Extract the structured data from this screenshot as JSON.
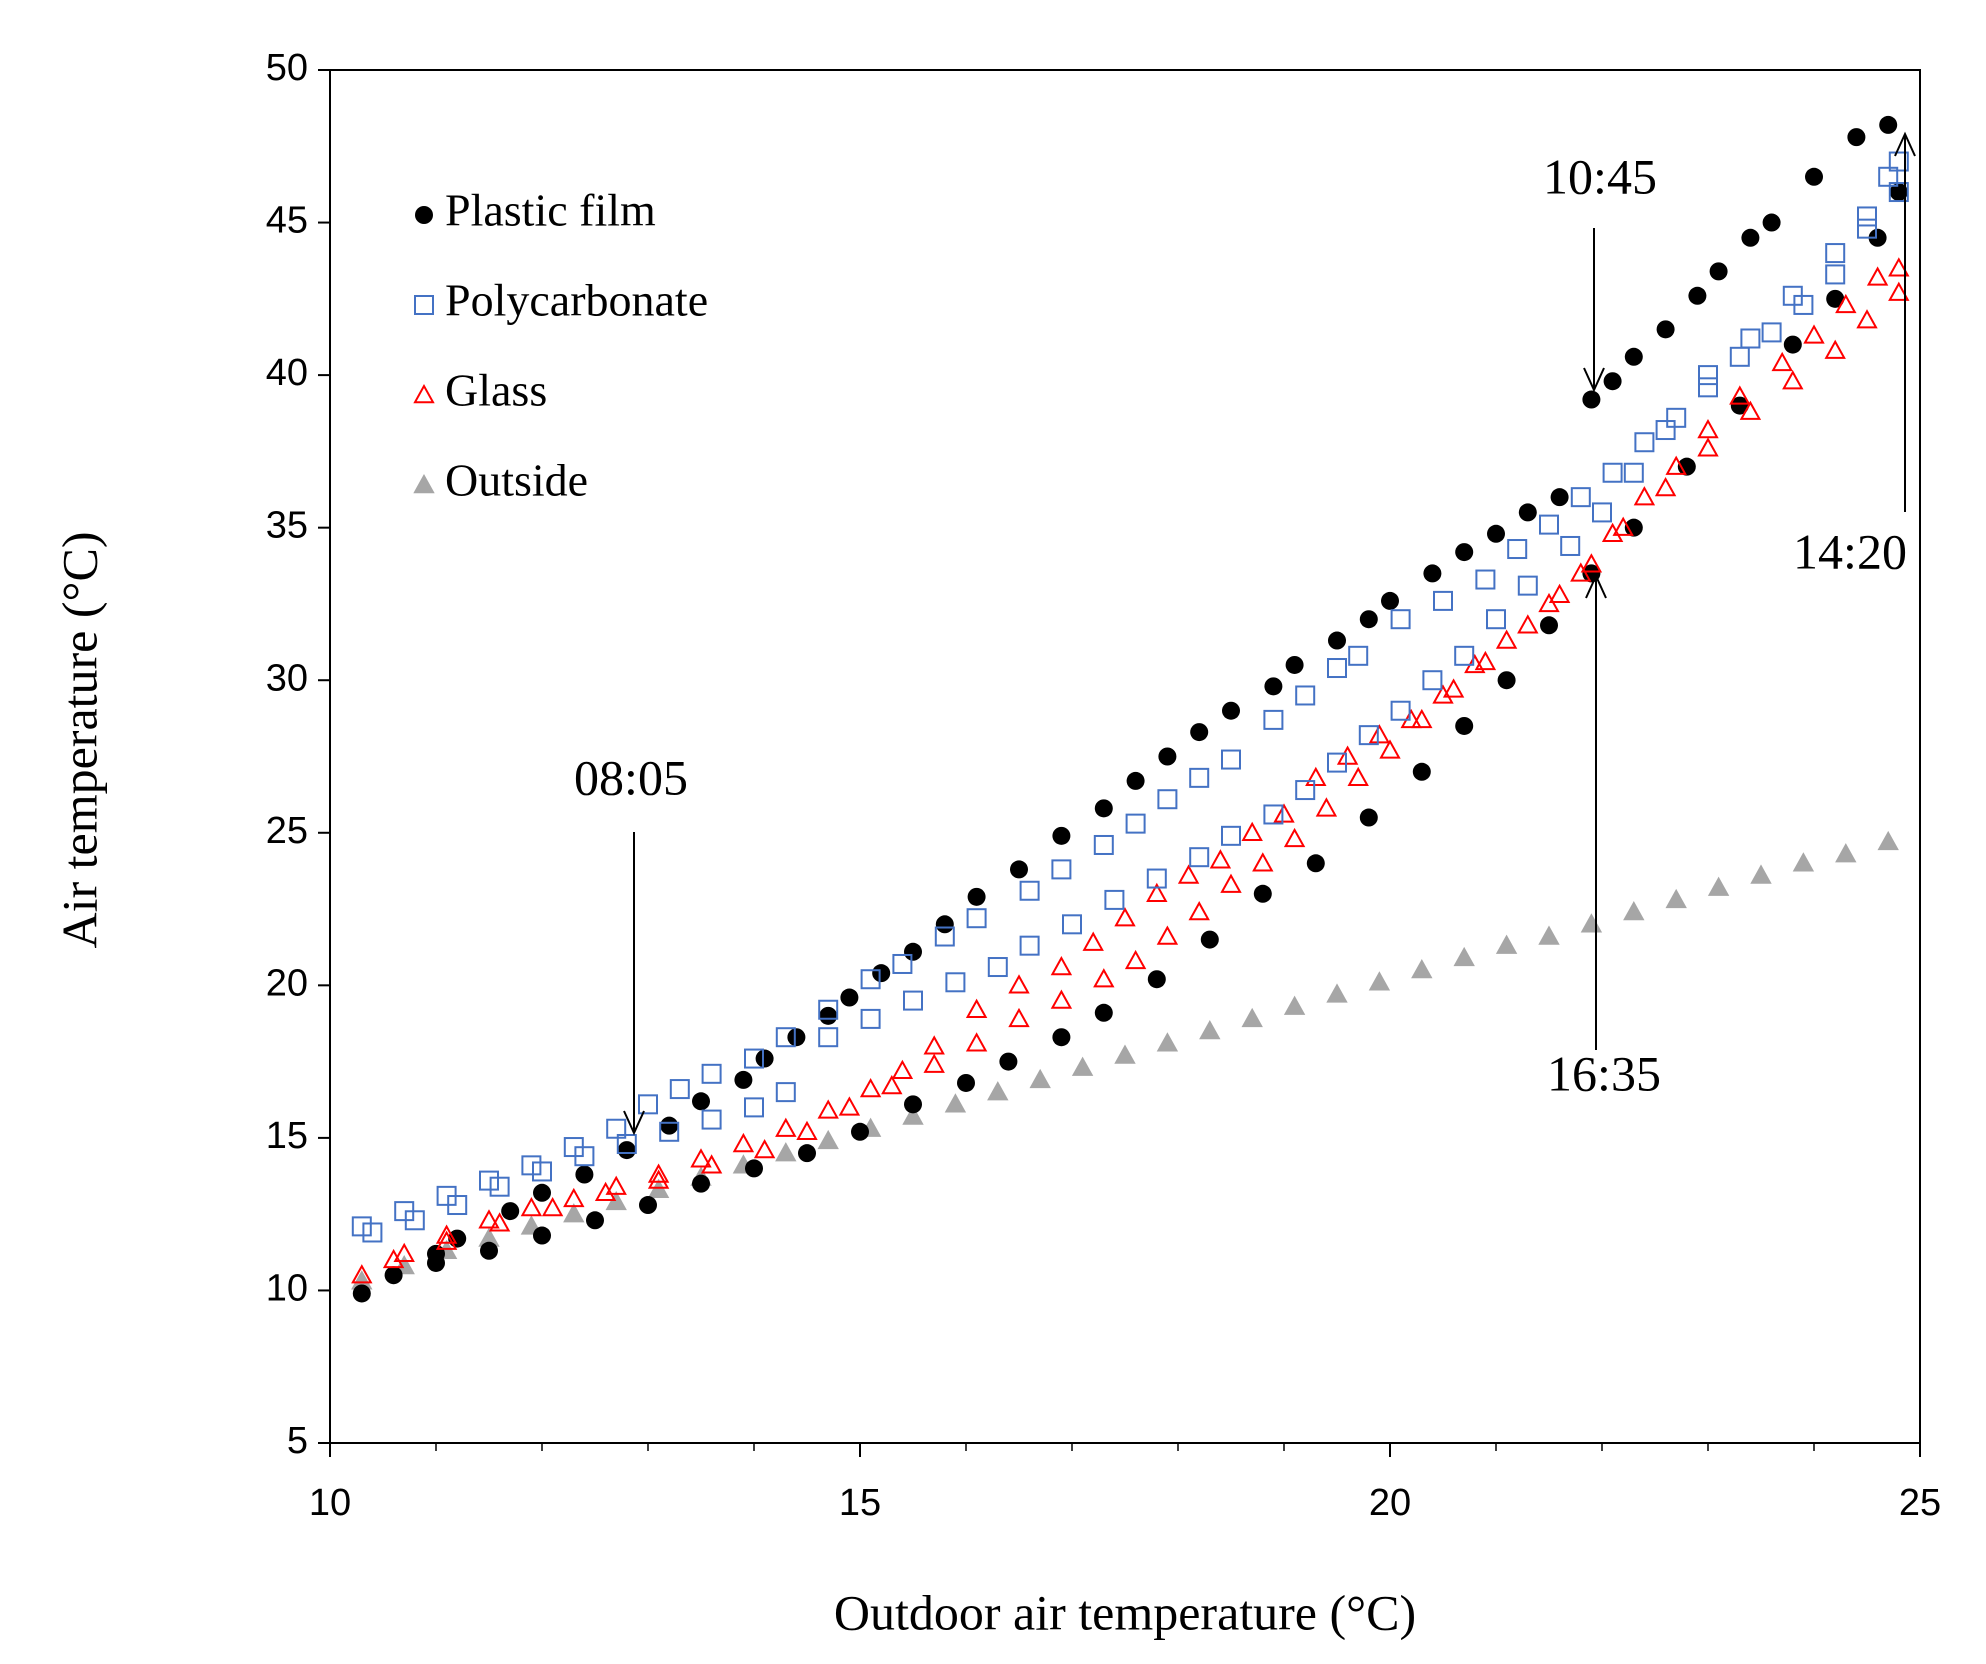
{
  "chart_data": {
    "type": "scatter",
    "x_label": "Outdoor air temperature (°C)",
    "y_label": "Air temperature (°C)",
    "xlim": [
      10,
      25
    ],
    "xticks": [
      10,
      15,
      20,
      25
    ],
    "xticks_minor": [
      11,
      12,
      13,
      14,
      16,
      17,
      18,
      19,
      21,
      22,
      23,
      24
    ],
    "ylim": [
      5,
      50
    ],
    "yticks": [
      5,
      10,
      15,
      20,
      25,
      30,
      35,
      40,
      45,
      50
    ],
    "legend": "upper left",
    "annotations": [
      "10:45",
      "14:20",
      "16:35",
      "08:05"
    ],
    "series": [
      {
        "name": "Plastic film",
        "color": "#000000",
        "marker": "circle",
        "x": [
          10.3,
          10.6,
          11.0,
          11.2,
          11.7,
          12.0,
          12.4,
          12.8,
          13.2,
          13.5,
          13.9,
          14.1,
          14.4,
          14.7,
          14.9,
          15.2,
          15.5,
          15.8,
          16.1,
          16.5,
          16.9,
          17.3,
          17.6,
          17.9,
          18.2,
          18.5,
          18.9,
          19.1,
          19.5,
          19.8,
          20.0,
          20.4,
          20.7,
          21.0,
          21.3,
          21.6,
          21.9,
          22.1,
          22.3,
          22.6,
          22.9,
          23.1,
          23.4,
          23.6,
          24.0,
          24.4,
          24.7,
          24.8,
          24.6,
          24.2,
          23.8,
          23.3,
          22.8,
          22.3,
          21.9,
          21.5,
          21.1,
          20.7,
          20.3,
          19.8,
          19.3,
          18.8,
          18.3,
          17.8,
          17.3,
          16.9,
          16.4,
          16.0,
          15.5,
          15.0,
          14.5,
          14.0,
          13.5,
          13.0,
          12.5,
          12.0,
          11.5,
          11.0
        ],
        "values": [
          9.9,
          10.5,
          11.2,
          11.7,
          12.6,
          13.2,
          13.8,
          14.6,
          15.4,
          16.2,
          16.9,
          17.6,
          18.3,
          19.0,
          19.6,
          20.4,
          21.1,
          22.0,
          22.9,
          23.8,
          24.9,
          25.8,
          26.7,
          27.5,
          28.3,
          29.0,
          29.8,
          30.5,
          31.3,
          32.0,
          32.6,
          33.5,
          34.2,
          34.8,
          35.5,
          36.0,
          39.2,
          39.8,
          40.6,
          41.5,
          42.6,
          43.4,
          44.5,
          45.0,
          46.5,
          47.8,
          48.2,
          46.0,
          44.5,
          42.5,
          41.0,
          39.0,
          37.0,
          35.0,
          33.5,
          31.8,
          30.0,
          28.5,
          27.0,
          25.5,
          24.0,
          23.0,
          21.5,
          20.2,
          19.1,
          18.3,
          17.5,
          16.8,
          16.1,
          15.2,
          14.5,
          14.0,
          13.5,
          12.8,
          12.3,
          11.8,
          11.3,
          10.9
        ]
      },
      {
        "name": "Polycarbonate",
        "color": "#4472c4",
        "marker": "square",
        "x": [
          10.3,
          10.7,
          11.1,
          11.5,
          11.9,
          12.3,
          12.7,
          13.0,
          13.3,
          13.6,
          14.0,
          14.3,
          14.7,
          15.1,
          15.4,
          15.8,
          16.1,
          16.6,
          16.9,
          17.3,
          17.6,
          17.9,
          18.2,
          18.5,
          18.9,
          19.2,
          19.5,
          19.7,
          20.1,
          20.5,
          20.9,
          21.2,
          21.5,
          21.8,
          22.1,
          22.4,
          22.7,
          23.0,
          23.3,
          23.6,
          23.9,
          24.2,
          24.5,
          24.7,
          24.8,
          24.8,
          24.5,
          24.2,
          23.8,
          23.4,
          23.0,
          22.6,
          22.3,
          22.0,
          21.7,
          21.3,
          21.0,
          20.7,
          20.4,
          20.1,
          19.8,
          19.5,
          19.2,
          18.9,
          18.5,
          18.2,
          17.8,
          17.4,
          17.0,
          16.6,
          16.3,
          15.9,
          15.5,
          15.1,
          14.7,
          14.3,
          14.0,
          13.6,
          13.2,
          12.8,
          12.4,
          12.0,
          11.6,
          11.2,
          10.8,
          10.4
        ],
        "values": [
          12.1,
          12.6,
          13.1,
          13.6,
          14.1,
          14.7,
          15.3,
          16.1,
          16.6,
          17.1,
          17.6,
          18.3,
          19.2,
          20.2,
          20.7,
          21.6,
          22.2,
          23.1,
          23.8,
          24.6,
          25.3,
          26.1,
          26.8,
          27.4,
          28.7,
          29.5,
          30.4,
          30.8,
          32.0,
          32.6,
          33.3,
          34.3,
          35.1,
          36.0,
          36.8,
          37.8,
          38.6,
          39.6,
          40.6,
          41.4,
          42.3,
          43.3,
          44.8,
          46.5,
          47.0,
          46.0,
          45.2,
          44.0,
          42.6,
          41.2,
          40.0,
          38.2,
          36.8,
          35.5,
          34.4,
          33.1,
          32.0,
          30.8,
          30.0,
          29.0,
          28.2,
          27.3,
          26.4,
          25.6,
          24.9,
          24.2,
          23.5,
          22.8,
          22.0,
          21.3,
          20.6,
          20.1,
          19.5,
          18.9,
          18.3,
          16.5,
          16.0,
          15.6,
          15.2,
          14.8,
          14.4,
          13.9,
          13.4,
          12.8,
          12.3,
          11.9
        ]
      },
      {
        "name": "Glass",
        "color": "#ff0000",
        "marker": "triangle",
        "x": [
          10.3,
          10.7,
          11.1,
          11.5,
          11.9,
          12.3,
          12.7,
          13.1,
          13.5,
          13.9,
          14.3,
          14.7,
          15.1,
          15.4,
          15.7,
          16.1,
          16.5,
          16.9,
          17.2,
          17.5,
          17.8,
          18.1,
          18.4,
          18.7,
          19.0,
          19.3,
          19.6,
          19.9,
          20.2,
          20.5,
          20.8,
          21.1,
          21.5,
          21.8,
          22.1,
          22.4,
          22.7,
          23.0,
          23.3,
          23.7,
          24.0,
          24.3,
          24.6,
          24.8,
          24.8,
          24.5,
          24.2,
          23.8,
          23.4,
          23.0,
          22.6,
          22.2,
          21.9,
          21.6,
          21.3,
          20.9,
          20.6,
          20.3,
          20.0,
          19.7,
          19.4,
          19.1,
          18.8,
          18.5,
          18.2,
          17.9,
          17.6,
          17.3,
          16.9,
          16.5,
          16.1,
          15.7,
          15.3,
          14.9,
          14.5,
          14.1,
          13.6,
          13.1,
          12.6,
          12.1,
          11.6,
          11.1,
          10.6
        ],
        "values": [
          10.5,
          11.2,
          11.8,
          12.3,
          12.7,
          13.0,
          13.4,
          13.8,
          14.3,
          14.8,
          15.3,
          15.9,
          16.6,
          17.2,
          18.0,
          19.2,
          20.0,
          20.6,
          21.4,
          22.2,
          23.0,
          23.6,
          24.1,
          25.0,
          25.6,
          26.8,
          27.5,
          28.2,
          28.7,
          29.5,
          30.5,
          31.3,
          32.5,
          33.5,
          34.8,
          36.0,
          37.0,
          38.2,
          39.3,
          40.4,
          41.3,
          42.3,
          43.2,
          43.5,
          42.7,
          41.8,
          40.8,
          39.8,
          38.8,
          37.6,
          36.3,
          35.0,
          33.8,
          32.8,
          31.8,
          30.6,
          29.7,
          28.7,
          27.7,
          26.8,
          25.8,
          24.8,
          24.0,
          23.3,
          22.4,
          21.6,
          20.8,
          20.2,
          19.5,
          18.9,
          18.1,
          17.4,
          16.7,
          16.0,
          15.2,
          14.6,
          14.1,
          13.6,
          13.2,
          12.7,
          12.2,
          11.6,
          11.0
        ]
      },
      {
        "name": "Outside",
        "color": "#a6a6a6",
        "marker": "triangle-filled",
        "x": [
          10.3,
          10.7,
          11.1,
          11.5,
          11.9,
          12.3,
          12.7,
          13.1,
          13.5,
          13.9,
          14.3,
          14.7,
          15.1,
          15.5,
          15.9,
          16.3,
          16.7,
          17.1,
          17.5,
          17.9,
          18.3,
          18.7,
          19.1,
          19.5,
          19.9,
          20.3,
          20.7,
          21.1,
          21.5,
          21.9,
          22.3,
          22.7,
          23.1,
          23.5,
          23.9,
          24.3,
          24.7
        ],
        "values": [
          10.3,
          10.8,
          11.3,
          11.7,
          12.1,
          12.5,
          12.9,
          13.3,
          13.7,
          14.1,
          14.5,
          14.9,
          15.3,
          15.7,
          16.1,
          16.5,
          16.9,
          17.3,
          17.7,
          18.1,
          18.5,
          18.9,
          19.3,
          19.7,
          20.1,
          20.5,
          20.9,
          21.3,
          21.6,
          22.0,
          22.4,
          22.8,
          23.2,
          23.6,
          24.0,
          24.3,
          24.7
        ]
      }
    ]
  }
}
